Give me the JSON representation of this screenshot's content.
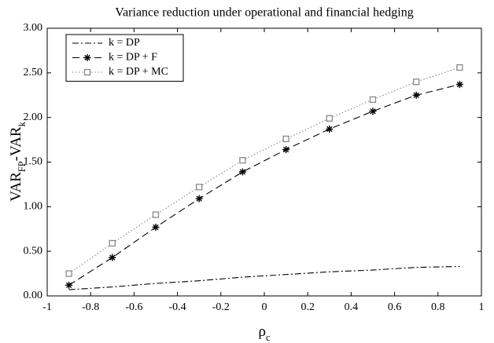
{
  "chart_data": {
    "type": "line",
    "title": "Variance reduction under operational and financial hedging",
    "xlabel": [
      "ρ",
      "c"
    ],
    "ylabel": [
      "VAR",
      "FP",
      "-VAR",
      "k"
    ],
    "x": [
      -0.9,
      -0.7,
      -0.5,
      -0.3,
      -0.1,
      0.1,
      0.3,
      0.5,
      0.7,
      0.9
    ],
    "series": [
      {
        "name": "k = DP",
        "color": "#000000",
        "linestyle": "dashdot",
        "marker": "none",
        "values": [
          0.07,
          0.1,
          0.14,
          0.17,
          0.21,
          0.24,
          0.27,
          0.29,
          0.32,
          0.33
        ]
      },
      {
        "name": "k = DP + F",
        "color": "#000000",
        "linestyle": "dashed",
        "marker": "asterisk",
        "values": [
          0.12,
          0.43,
          0.77,
          1.09,
          1.39,
          1.64,
          1.87,
          2.07,
          2.25,
          2.37
        ]
      },
      {
        "name": "k = DP + MC",
        "color": "#888888",
        "linestyle": "dotted",
        "marker": "square",
        "values": [
          0.25,
          0.59,
          0.91,
          1.22,
          1.52,
          1.76,
          1.99,
          2.2,
          2.4,
          2.56
        ]
      }
    ],
    "xlim": [
      -1,
      1
    ],
    "xticks": [
      -1,
      -0.8,
      -0.6,
      -0.4,
      -0.2,
      0,
      0.2,
      0.4,
      0.6,
      0.8,
      1
    ],
    "ylim": [
      0,
      3
    ],
    "yticks": [
      {
        "value": 0,
        "label": "0.00"
      },
      {
        "value": 0.5,
        "label": "0.50"
      },
      {
        "value": 1,
        "label": "1.00"
      },
      {
        "value": 1.5,
        "label": "1.50"
      },
      {
        "value": 2,
        "label": "2.00"
      },
      {
        "value": 2.5,
        "label": "2.50"
      },
      {
        "value": 3,
        "label": "3.00"
      }
    ],
    "grid": false,
    "legend": "upper left"
  }
}
